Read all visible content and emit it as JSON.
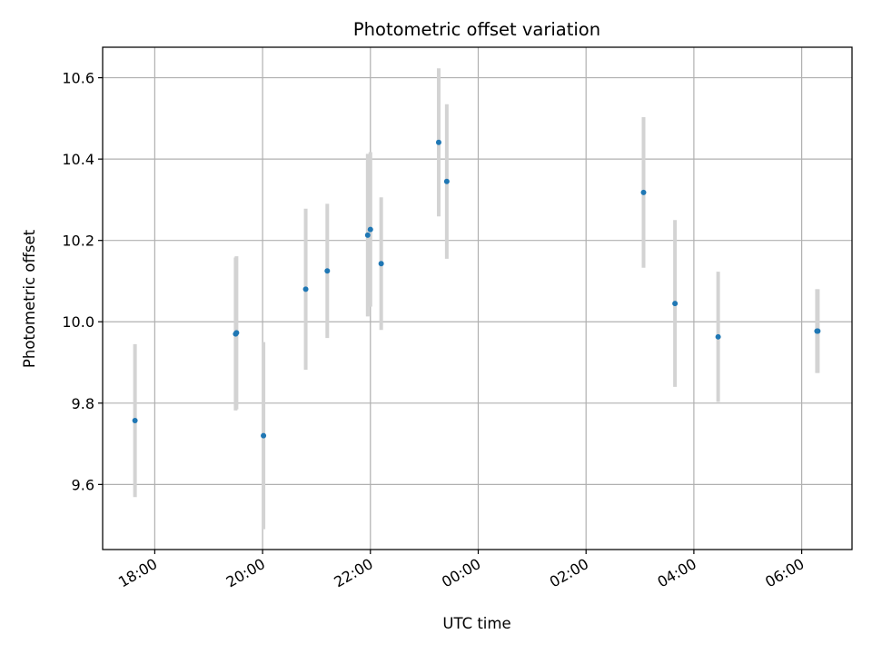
{
  "chart_data": {
    "type": "scatter",
    "title": "Photometric offset variation",
    "xlabel": "UTC time",
    "ylabel": "Photometric offset",
    "x_axis_type": "time",
    "x_tick_labels": [
      "18:00",
      "20:00",
      "22:00",
      "00:00",
      "02:00",
      "04:00",
      "06:00"
    ],
    "y_tick_labels": [
      "9.6",
      "9.8",
      "10.0",
      "10.2",
      "10.4",
      "10.6"
    ],
    "xlim": [
      "17:02",
      "06:56"
    ],
    "ylim": [
      9.44,
      10.675
    ],
    "grid": true,
    "colors": {
      "marker": "#1f77b4",
      "errorbar": "#d3d3d3",
      "grid": "#b0b0b0",
      "frame": "#000000"
    },
    "series": [
      {
        "points": [
          {
            "x": "17:38",
            "y": 9.757,
            "err": 0.188
          },
          {
            "x": "19:30",
            "y": 9.97,
            "err": 0.188
          },
          {
            "x": "19:31",
            "y": 9.973,
            "err": 0.188
          },
          {
            "x": "20:01",
            "y": 9.72,
            "err": 0.23
          },
          {
            "x": "20:48",
            "y": 10.08,
            "err": 0.198
          },
          {
            "x": "21:12",
            "y": 10.125,
            "err": 0.165
          },
          {
            "x": "21:57",
            "y": 10.213,
            "err": 0.2
          },
          {
            "x": "22:00",
            "y": 10.227,
            "err": 0.19
          },
          {
            "x": "22:12",
            "y": 10.143,
            "err": 0.163
          },
          {
            "x": "23:16",
            "y": 10.441,
            "err": 0.182
          },
          {
            "x": "23:25",
            "y": 10.345,
            "err": 0.19
          },
          {
            "x": "03:04",
            "y": 10.318,
            "err": 0.185
          },
          {
            "x": "03:39",
            "y": 10.045,
            "err": 0.205
          },
          {
            "x": "04:27",
            "y": 9.963,
            "err": 0.16
          },
          {
            "x": "06:17",
            "y": 9.977,
            "err": 0.103
          },
          {
            "x": "06:18",
            "y": 9.977,
            "err": 0.103
          }
        ]
      }
    ]
  }
}
